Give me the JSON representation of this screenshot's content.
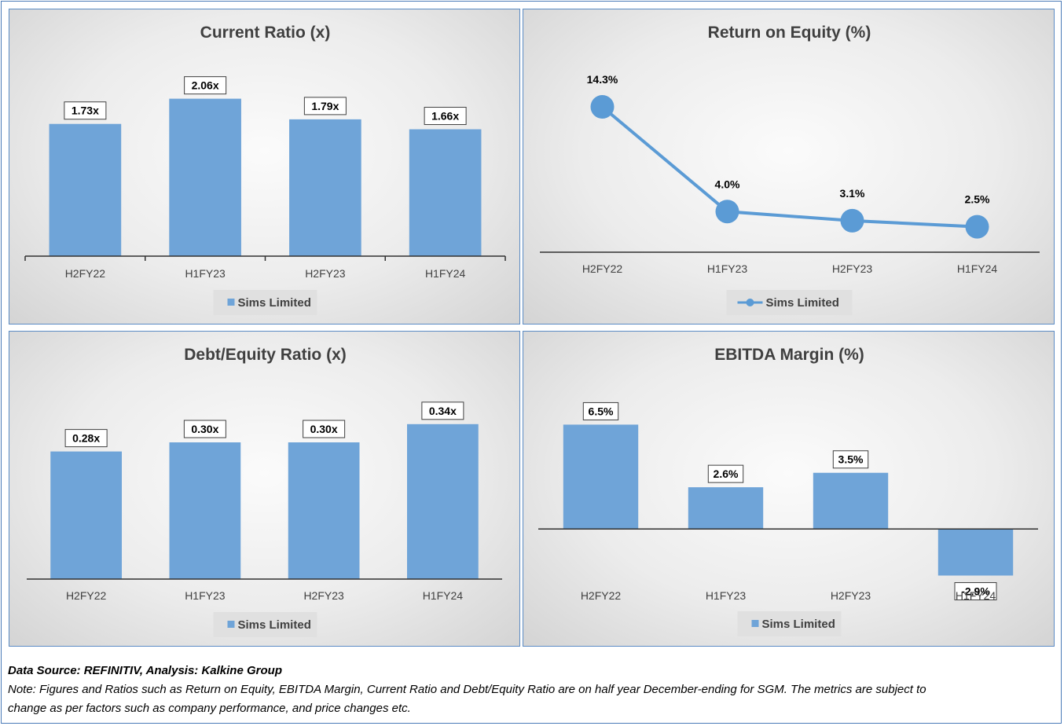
{
  "chart_data": [
    {
      "type": "bar",
      "title": "Current Ratio (x)",
      "categories": [
        "H2FY22",
        "H1FY23",
        "H2FY23",
        "H1FY24"
      ],
      "series": [
        {
          "name": "Sims Limited",
          "values": [
            1.73,
            2.06,
            1.79,
            1.66
          ]
        }
      ],
      "data_labels": [
        "1.73x",
        "2.06x",
        "1.79x",
        "1.66x"
      ],
      "ylim": [
        0,
        2.2
      ],
      "legend": "bottom",
      "grid": false,
      "color": "#6fa4d8"
    },
    {
      "type": "line",
      "title": "Return on Equity (%)",
      "categories": [
        "H2FY22",
        "H1FY23",
        "H2FY23",
        "H1FY24"
      ],
      "series": [
        {
          "name": "Sims Limited",
          "values": [
            14.3,
            4.0,
            3.1,
            2.5
          ]
        }
      ],
      "data_labels": [
        "14.3%",
        "4.0%",
        "3.1%",
        "2.5%"
      ],
      "ylim": [
        0,
        16
      ],
      "legend": "bottom",
      "grid": false,
      "color": "#5b9bd5"
    },
    {
      "type": "bar",
      "title": "Debt/Equity Ratio (x)",
      "categories": [
        "H2FY22",
        "H1FY23",
        "H2FY23",
        "H1FY24"
      ],
      "series": [
        {
          "name": "Sims Limited",
          "values": [
            0.28,
            0.3,
            0.3,
            0.34
          ]
        }
      ],
      "data_labels": [
        "0.28x",
        "0.30x",
        "0.30x",
        "0.34x"
      ],
      "ylim": [
        0,
        0.4
      ],
      "legend": "bottom",
      "grid": false,
      "color": "#6fa4d8"
    },
    {
      "type": "bar",
      "title": "EBITDA Margin (%)",
      "categories": [
        "H2FY22",
        "H1FY23",
        "H2FY23",
        "H1FY24"
      ],
      "series": [
        {
          "name": "Sims Limited",
          "values": [
            6.5,
            2.6,
            3.5,
            -2.9
          ]
        }
      ],
      "data_labels": [
        "6.5%",
        "2.6%",
        "3.5%",
        "-2.9%"
      ],
      "ylim": [
        -4,
        7.5
      ],
      "legend": "bottom",
      "grid": false,
      "color": "#6fa4d8"
    }
  ],
  "footer": {
    "source": "Data Source: REFINITIV, Analysis: Kalkine Group",
    "note_line1": "Note: Figures and Ratios such as Return on Equity, EBITDA Margin, Current Ratio and Debt/Equity Ratio are on half year December-ending for SGM. The metrics are subject to",
    "note_line2": "change as per factors such as company performance, and price changes etc."
  }
}
